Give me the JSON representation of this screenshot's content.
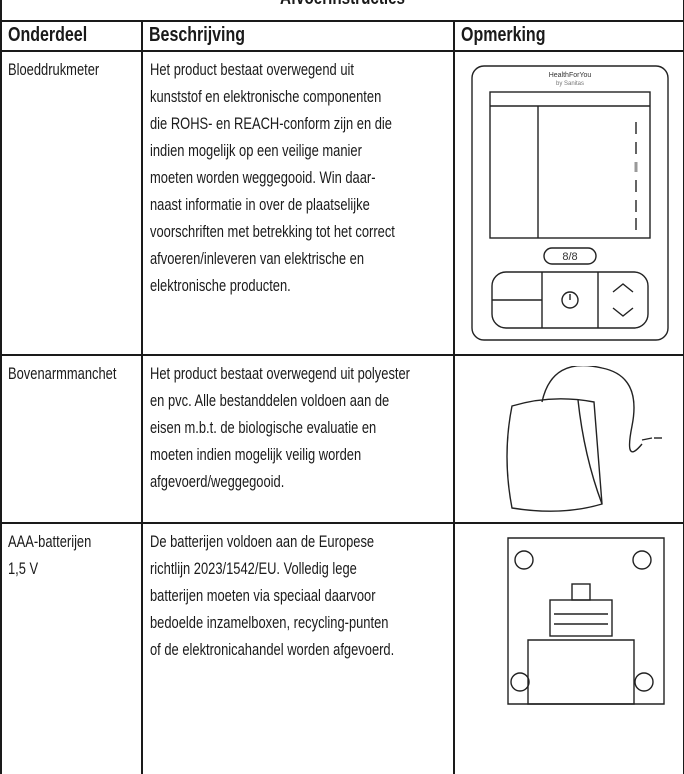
{
  "title": "Afvoerinstructies",
  "table": {
    "headers": [
      "Onderdeel",
      "Beschrijving",
      "Opmerking"
    ],
    "rows": [
      {
        "part": [
          "Bloeddrukmeter"
        ],
        "description": [
          "Het product bestaat overwegend uit",
          "kunststof en elektronische componenten",
          "die ROHS- en REACH-conform zijn en die",
          "indien mogelijk op een veilige manier",
          "moeten worden weggegooid. Win daar-",
          "naast informatie in over de plaatselijke",
          "voorschriften met betrekking tot het correct",
          "afvoeren/inleveren van elektrische en",
          "elektronische producten."
        ]
      },
      {
        "part": [
          "Bovenarmmanchet"
        ],
        "description": [
          "Het product bestaat overwegend uit polyester",
          "en pvc. Alle bestanddelen voldoen aan de",
          "eisen m.b.t. de biologische evaluatie en",
          "moeten indien mogelijk veilig worden",
          "afgevoerd/weggegooid."
        ]
      },
      {
        "part": [
          "AAA-batterijen",
          "1,5 V"
        ],
        "description": [
          "De batterijen voldoen aan de Europese",
          "richtlijn 2023/1542/EU. Volledig lege",
          "batterijen moeten via speciaal daarvoor",
          "bedoelde inzamelboxen, recycling-punten",
          "of de elektronicahandel worden afgevoerd."
        ]
      }
    ]
  },
  "device": {
    "brand": "HealthForYou",
    "brand_sub": "by Sanitas",
    "user_keys": "8/8"
  }
}
